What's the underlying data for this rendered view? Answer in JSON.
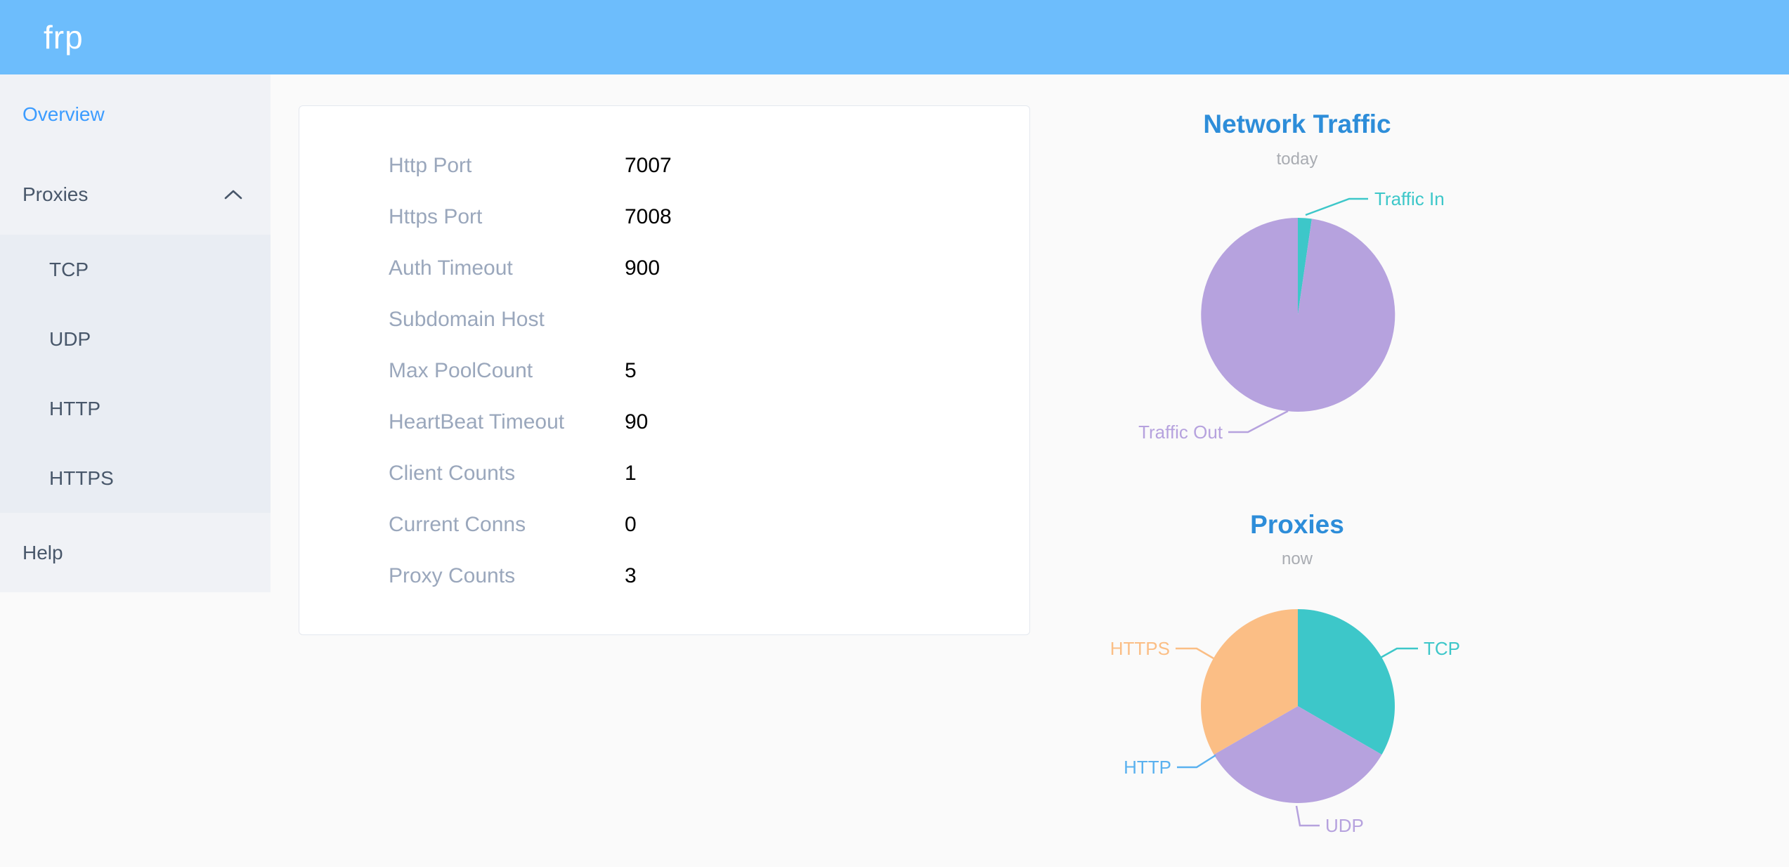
{
  "header": {
    "logo": "frp"
  },
  "sidebar": {
    "items": [
      {
        "label": "Overview",
        "active": true
      },
      {
        "label": "Proxies",
        "expanded": true,
        "children": [
          "TCP",
          "UDP",
          "HTTP",
          "HTTPS"
        ]
      },
      {
        "label": "Help"
      }
    ]
  },
  "server_info": {
    "rows": [
      {
        "label": "Http Port",
        "value": "7007"
      },
      {
        "label": "Https Port",
        "value": "7008"
      },
      {
        "label": "Auth Timeout",
        "value": "900"
      },
      {
        "label": "Subdomain Host",
        "value": ""
      },
      {
        "label": "Max PoolCount",
        "value": "5"
      },
      {
        "label": "HeartBeat Timeout",
        "value": "90"
      },
      {
        "label": "Client Counts",
        "value": "1"
      },
      {
        "label": "Current Conns",
        "value": "0"
      },
      {
        "label": "Proxy Counts",
        "value": "3"
      }
    ]
  },
  "chart_data": [
    {
      "type": "pie",
      "title": "Network Traffic",
      "subtitle": "today",
      "start_angle": 90,
      "clockwise": true,
      "legend": "none",
      "labels": "outside",
      "units": "percent of today's traffic (estimated from slice angles)",
      "slices": [
        {
          "label": "Traffic In",
          "value": 2.3,
          "color": "#3dc7c9"
        },
        {
          "label": "Traffic Out",
          "value": 97.7,
          "color": "#b6a2de"
        }
      ]
    },
    {
      "type": "pie",
      "title": "Proxies",
      "subtitle": "now",
      "start_angle": 90,
      "clockwise": true,
      "legend": "none",
      "labels": "outside",
      "units": "proxy count",
      "slices": [
        {
          "label": "TCP",
          "value": 1,
          "color": "#3dc7c9"
        },
        {
          "label": "UDP",
          "value": 1,
          "color": "#b6a2de"
        },
        {
          "label": "HTTP",
          "value": 0,
          "color": "#5ab1ef"
        },
        {
          "label": "HTTPS",
          "value": 1,
          "color": "#fbbe85"
        }
      ]
    }
  ],
  "colors": {
    "header_background": "#6dbdfc",
    "sidebar_background": "#f0f2f6",
    "submenu_background": "#e9edf3",
    "sidebar_text": "#48576a",
    "sidebar_active_text": "#3c9cff",
    "page_background": "#fafafa",
    "card_border": "#e4e8ef",
    "config_label": "#9aa7bc",
    "config_value": "#000000",
    "chart_title": "#2d8dd9",
    "chart_subtitle": "#a9acb2"
  }
}
